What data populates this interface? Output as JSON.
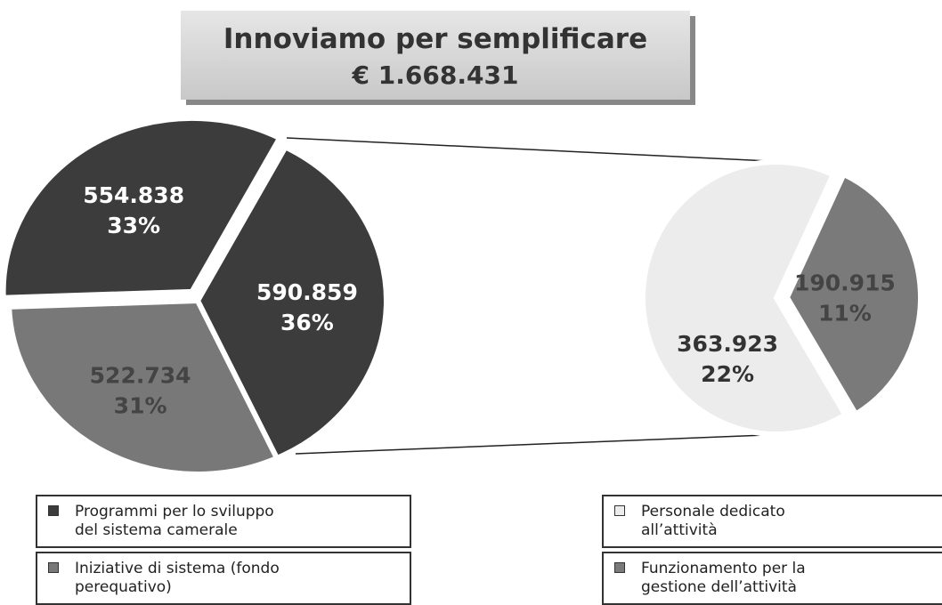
{
  "chart_data": [
    {
      "type": "pie",
      "title": "Innoviamo per semplificare",
      "subtitle": "€ 1.668.431",
      "categories": [
        "Programmi per lo sviluppo del sistema camerale",
        "Iniziative di sistema (fondo perequativo)",
        null
      ],
      "values": [
        590859,
        522734,
        554838
      ],
      "value_labels": [
        "590.859",
        "522.734",
        "554.838"
      ],
      "percent_labels": [
        "36%",
        "31%",
        "33%"
      ],
      "colors": [
        "#3c3c3c",
        "#787878",
        "#3c3c3c"
      ]
    },
    {
      "type": "pie",
      "categories": [
        "Personale dedicato all’attività",
        "Funzionamento per la gestione dell’attività"
      ],
      "values": [
        363923,
        190915
      ],
      "value_labels": [
        "363.923",
        "190.915"
      ],
      "percent_labels": [
        "22%",
        "11%"
      ],
      "colors": [
        "#ececec",
        "#7a7a7a"
      ]
    }
  ]
}
